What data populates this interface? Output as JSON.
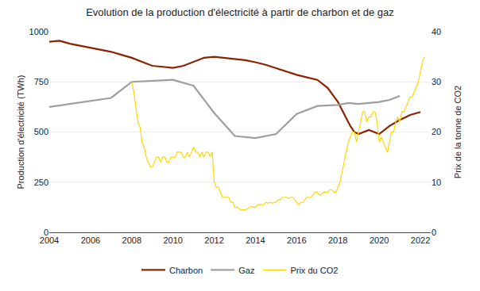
{
  "chart_data": {
    "type": "line",
    "title": "Evolution de la production d'électricité à partir de charbon et de gaz",
    "ylabel": "Production d'électricité (TWh)",
    "y2label": "Prix de la tonne de CO2",
    "xlim": [
      2004,
      2022.5
    ],
    "xticks": [
      2004,
      2006,
      2008,
      2010,
      2012,
      2014,
      2016,
      2018,
      2020,
      2022
    ],
    "ylim": [
      0,
      1000
    ],
    "yticks": [
      0,
      250,
      500,
      750,
      1000
    ],
    "y2lim": [
      0,
      40
    ],
    "y2ticks": [
      0,
      10,
      20,
      30,
      40
    ],
    "grid": "y",
    "legend": "bottom",
    "series": [
      {
        "name": "Charbon",
        "color": "#8B2200",
        "axis": "y",
        "x": [
          2004,
          2004.5,
          2005,
          2005.5,
          2006,
          2006.5,
          2007,
          2007.5,
          2008,
          2008.5,
          2009,
          2009.5,
          2010,
          2010.5,
          2011,
          2011.5,
          2012,
          2012.5,
          2013,
          2013.5,
          2014,
          2014.5,
          2015,
          2015.5,
          2016,
          2016.5,
          2017,
          2017.5,
          2018,
          2018.2,
          2018.4,
          2018.6,
          2018.8,
          2019,
          2019.5,
          2020,
          2020.5,
          2021,
          2021.5,
          2022
        ],
        "values": [
          950,
          955,
          940,
          930,
          920,
          910,
          900,
          885,
          870,
          850,
          830,
          825,
          820,
          830,
          850,
          870,
          875,
          870,
          865,
          858,
          848,
          835,
          818,
          800,
          785,
          772,
          760,
          720,
          650,
          610,
          570,
          530,
          500,
          490,
          510,
          490,
          530,
          560,
          585,
          600
        ]
      },
      {
        "name": "Gaz",
        "color": "#9E9E9E",
        "axis": "y",
        "x": [
          2004,
          2005,
          2006,
          2007,
          2008,
          2009,
          2010,
          2011,
          2012,
          2013,
          2014,
          2015,
          2016,
          2017,
          2018,
          2018.5,
          2019,
          2019.5,
          2020,
          2020.5,
          2021
        ],
        "values": [
          625,
          640,
          655,
          670,
          750,
          755,
          760,
          730,
          595,
          480,
          470,
          490,
          590,
          630,
          635,
          645,
          640,
          645,
          650,
          660,
          680
        ]
      },
      {
        "name": "Prix du CO2",
        "color": "#FFD700",
        "axis": "y2",
        "x": [
          2008.0,
          2008.1,
          2008.2,
          2008.3,
          2008.4,
          2008.5,
          2008.6,
          2008.7,
          2008.8,
          2008.9,
          2009.0,
          2009.1,
          2009.2,
          2009.3,
          2009.4,
          2009.5,
          2009.6,
          2009.7,
          2009.8,
          2009.9,
          2010.0,
          2010.1,
          2010.2,
          2010.3,
          2010.4,
          2010.5,
          2010.6,
          2010.7,
          2010.8,
          2010.9,
          2011.0,
          2011.1,
          2011.2,
          2011.3,
          2011.4,
          2011.5,
          2011.6,
          2011.7,
          2011.8,
          2011.9,
          2012.0,
          2012.1,
          2012.2,
          2012.3,
          2012.4,
          2012.5,
          2012.6,
          2012.7,
          2012.8,
          2012.9,
          2013.0,
          2013.1,
          2013.2,
          2013.3,
          2013.4,
          2013.5,
          2013.6,
          2013.7,
          2013.8,
          2013.9,
          2014.0,
          2014.1,
          2014.2,
          2014.3,
          2014.4,
          2014.5,
          2014.6,
          2014.7,
          2014.8,
          2014.9,
          2015.0,
          2015.1,
          2015.2,
          2015.3,
          2015.4,
          2015.5,
          2015.6,
          2015.7,
          2015.8,
          2015.9,
          2016.0,
          2016.1,
          2016.2,
          2016.3,
          2016.4,
          2016.5,
          2016.6,
          2016.7,
          2016.8,
          2016.9,
          2017.0,
          2017.1,
          2017.2,
          2017.3,
          2017.4,
          2017.5,
          2017.6,
          2017.7,
          2017.8,
          2017.9,
          2018.0,
          2018.1,
          2018.2,
          2018.3,
          2018.4,
          2018.5,
          2018.6,
          2018.7,
          2018.8,
          2018.9,
          2019.0,
          2019.1,
          2019.2,
          2019.3,
          2019.4,
          2019.5,
          2019.6,
          2019.7,
          2019.8,
          2019.9,
          2020.0,
          2020.1,
          2020.2,
          2020.3,
          2020.4,
          2020.5,
          2020.6,
          2020.7,
          2020.8,
          2020.9,
          2021.0,
          2021.1,
          2021.2,
          2021.3,
          2021.4,
          2021.5,
          2021.6,
          2021.7,
          2021.8,
          2021.9,
          2022.0,
          2022.1,
          2022.2
        ],
        "values": [
          30,
          28,
          25,
          22,
          21,
          18,
          17,
          15,
          14,
          13,
          13,
          14,
          15,
          15,
          14,
          15,
          15,
          14,
          14,
          15,
          15,
          15,
          16,
          16,
          16,
          15,
          15,
          16,
          15,
          16,
          17,
          16,
          16,
          15,
          16,
          15,
          16,
          16,
          15,
          16,
          10,
          9,
          9,
          8,
          7,
          7,
          7,
          7,
          6,
          6,
          5,
          5,
          4.8,
          4.5,
          4.5,
          4.5,
          4.7,
          5,
          5.2,
          5,
          5,
          5.5,
          5.5,
          5.5,
          5.5,
          6,
          5.8,
          6,
          5.8,
          6,
          6,
          6.5,
          6.5,
          7,
          7,
          7,
          6.8,
          7,
          7,
          6.5,
          6,
          5.5,
          6,
          6,
          6.5,
          7,
          7,
          7,
          7.5,
          8,
          8,
          7.5,
          7.5,
          8,
          8,
          8,
          8.5,
          8.5,
          8,
          8,
          9,
          10,
          12,
          14,
          16,
          18,
          19,
          20,
          20,
          18,
          20,
          22,
          24,
          24,
          22,
          23,
          23,
          24,
          24,
          22,
          18,
          19,
          18,
          17,
          16,
          18,
          20,
          20,
          22,
          23,
          22,
          24,
          24,
          25,
          26,
          27,
          27,
          28,
          29,
          30,
          32,
          34,
          35
        ]
      }
    ]
  }
}
